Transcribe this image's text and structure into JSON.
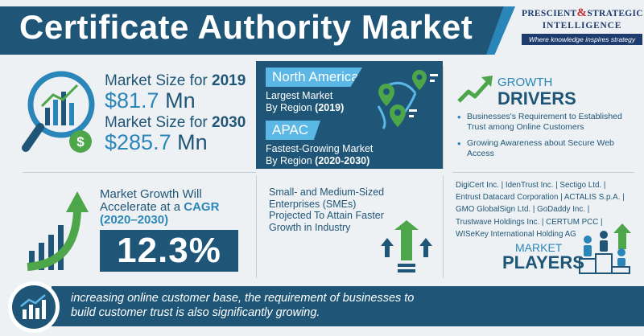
{
  "header": {
    "title": "Certificate Authority Market",
    "logo_line1_a": "PRESCIENT",
    "logo_amp": "&",
    "logo_line1_b": "STRATEGIC",
    "logo_line2": "INTELLIGENCE",
    "logo_tagline": "Where knowledge inspires strategy"
  },
  "market_size": {
    "label_prefix": "Market Size for ",
    "year_2019": "2019",
    "value_2019": "$81.7",
    "year_2030": "2030",
    "value_2030": "$285.7",
    "unit": "Mn"
  },
  "regions": {
    "largest_name": "North America",
    "largest_line1": "Largest Market",
    "largest_line2_prefix": "By Region ",
    "largest_period": "(2019)",
    "fastest_name": "APAC",
    "fastest_line1": "Fastest-Growing Market",
    "fastest_line2_prefix": "By Region ",
    "fastest_period": "(2020-2030)"
  },
  "growth_drivers": {
    "title_top": "GROWTH",
    "title_bottom": "DRIVERS",
    "items": [
      "Businesses's Requirement to Established Trust among Online Customers",
      "Growing Awareness about Secure Web Access"
    ]
  },
  "cagr": {
    "line1": "Market Growth Will",
    "line2_prefix": "Accelerate at a ",
    "line2_highlight": "CAGR",
    "years": "(2020–2030)",
    "value": "12.3%"
  },
  "sme": {
    "lines": [
      "Small- and Medium-Sized",
      "Enterprises (SMEs)",
      "Projected To Attain Faster",
      "Growth in Industry"
    ]
  },
  "players": {
    "lines": [
      "DigiCert Inc.  |  IdenTrust Inc.  |  Sectigo Ltd.  |",
      "Entrust Datacard Corporation  |  ACTALIS S.p.A.  |",
      "GMO GlobalSign Ltd.  |  GoDaddy Inc.  |",
      "Trustwave Holdings Inc.  |  CERTUM PCC  |",
      "WISeKey International Holding AG"
    ],
    "title_top": "MARKET",
    "title_bottom": "PLAYERS"
  },
  "footer": {
    "line1": "increasing online customer base, the requirement of businesses to",
    "line2": "build customer trust is also significantly growing."
  },
  "colors": {
    "navy": "#1f5677",
    "blue": "#2a86b8",
    "light_blue": "#5bb8e6",
    "green": "#4ea64a"
  }
}
